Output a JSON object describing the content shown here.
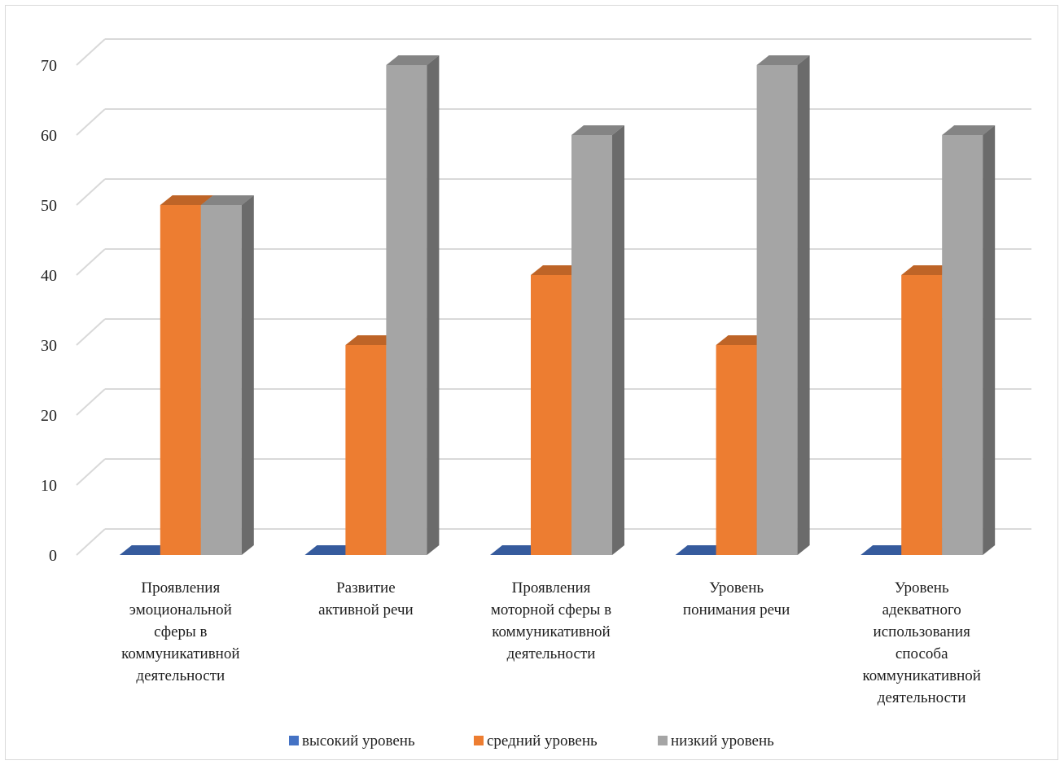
{
  "chart_data": {
    "type": "bar",
    "title": "",
    "xlabel": "",
    "ylabel": "",
    "ylim": [
      0,
      70
    ],
    "yticks": [
      0,
      10,
      20,
      30,
      40,
      50,
      60,
      70
    ],
    "grid": true,
    "legend_position": "bottom",
    "categories": [
      [
        "Проявления",
        "эмоциональной",
        "сферы в",
        "коммуникативной",
        "деятельности"
      ],
      [
        "Развитие",
        "активной речи"
      ],
      [
        "Проявления",
        "моторной сферы в",
        "коммуникативной",
        "деятельности"
      ],
      [
        "Уровень",
        "понимания речи"
      ],
      [
        "Уровень",
        "адекватного",
        "использования",
        "способа",
        "коммуникативной",
        "деятельности"
      ]
    ],
    "series": [
      {
        "name": "высокий уровень",
        "values": [
          0,
          0,
          0,
          0,
          0
        ],
        "color": "#4472c4"
      },
      {
        "name": "средний уровень",
        "values": [
          50,
          30,
          40,
          30,
          40
        ],
        "color": "#ed7d31"
      },
      {
        "name": "низкий уровень",
        "values": [
          50,
          70,
          60,
          70,
          60
        ],
        "color": "#a5a5a5"
      }
    ]
  }
}
